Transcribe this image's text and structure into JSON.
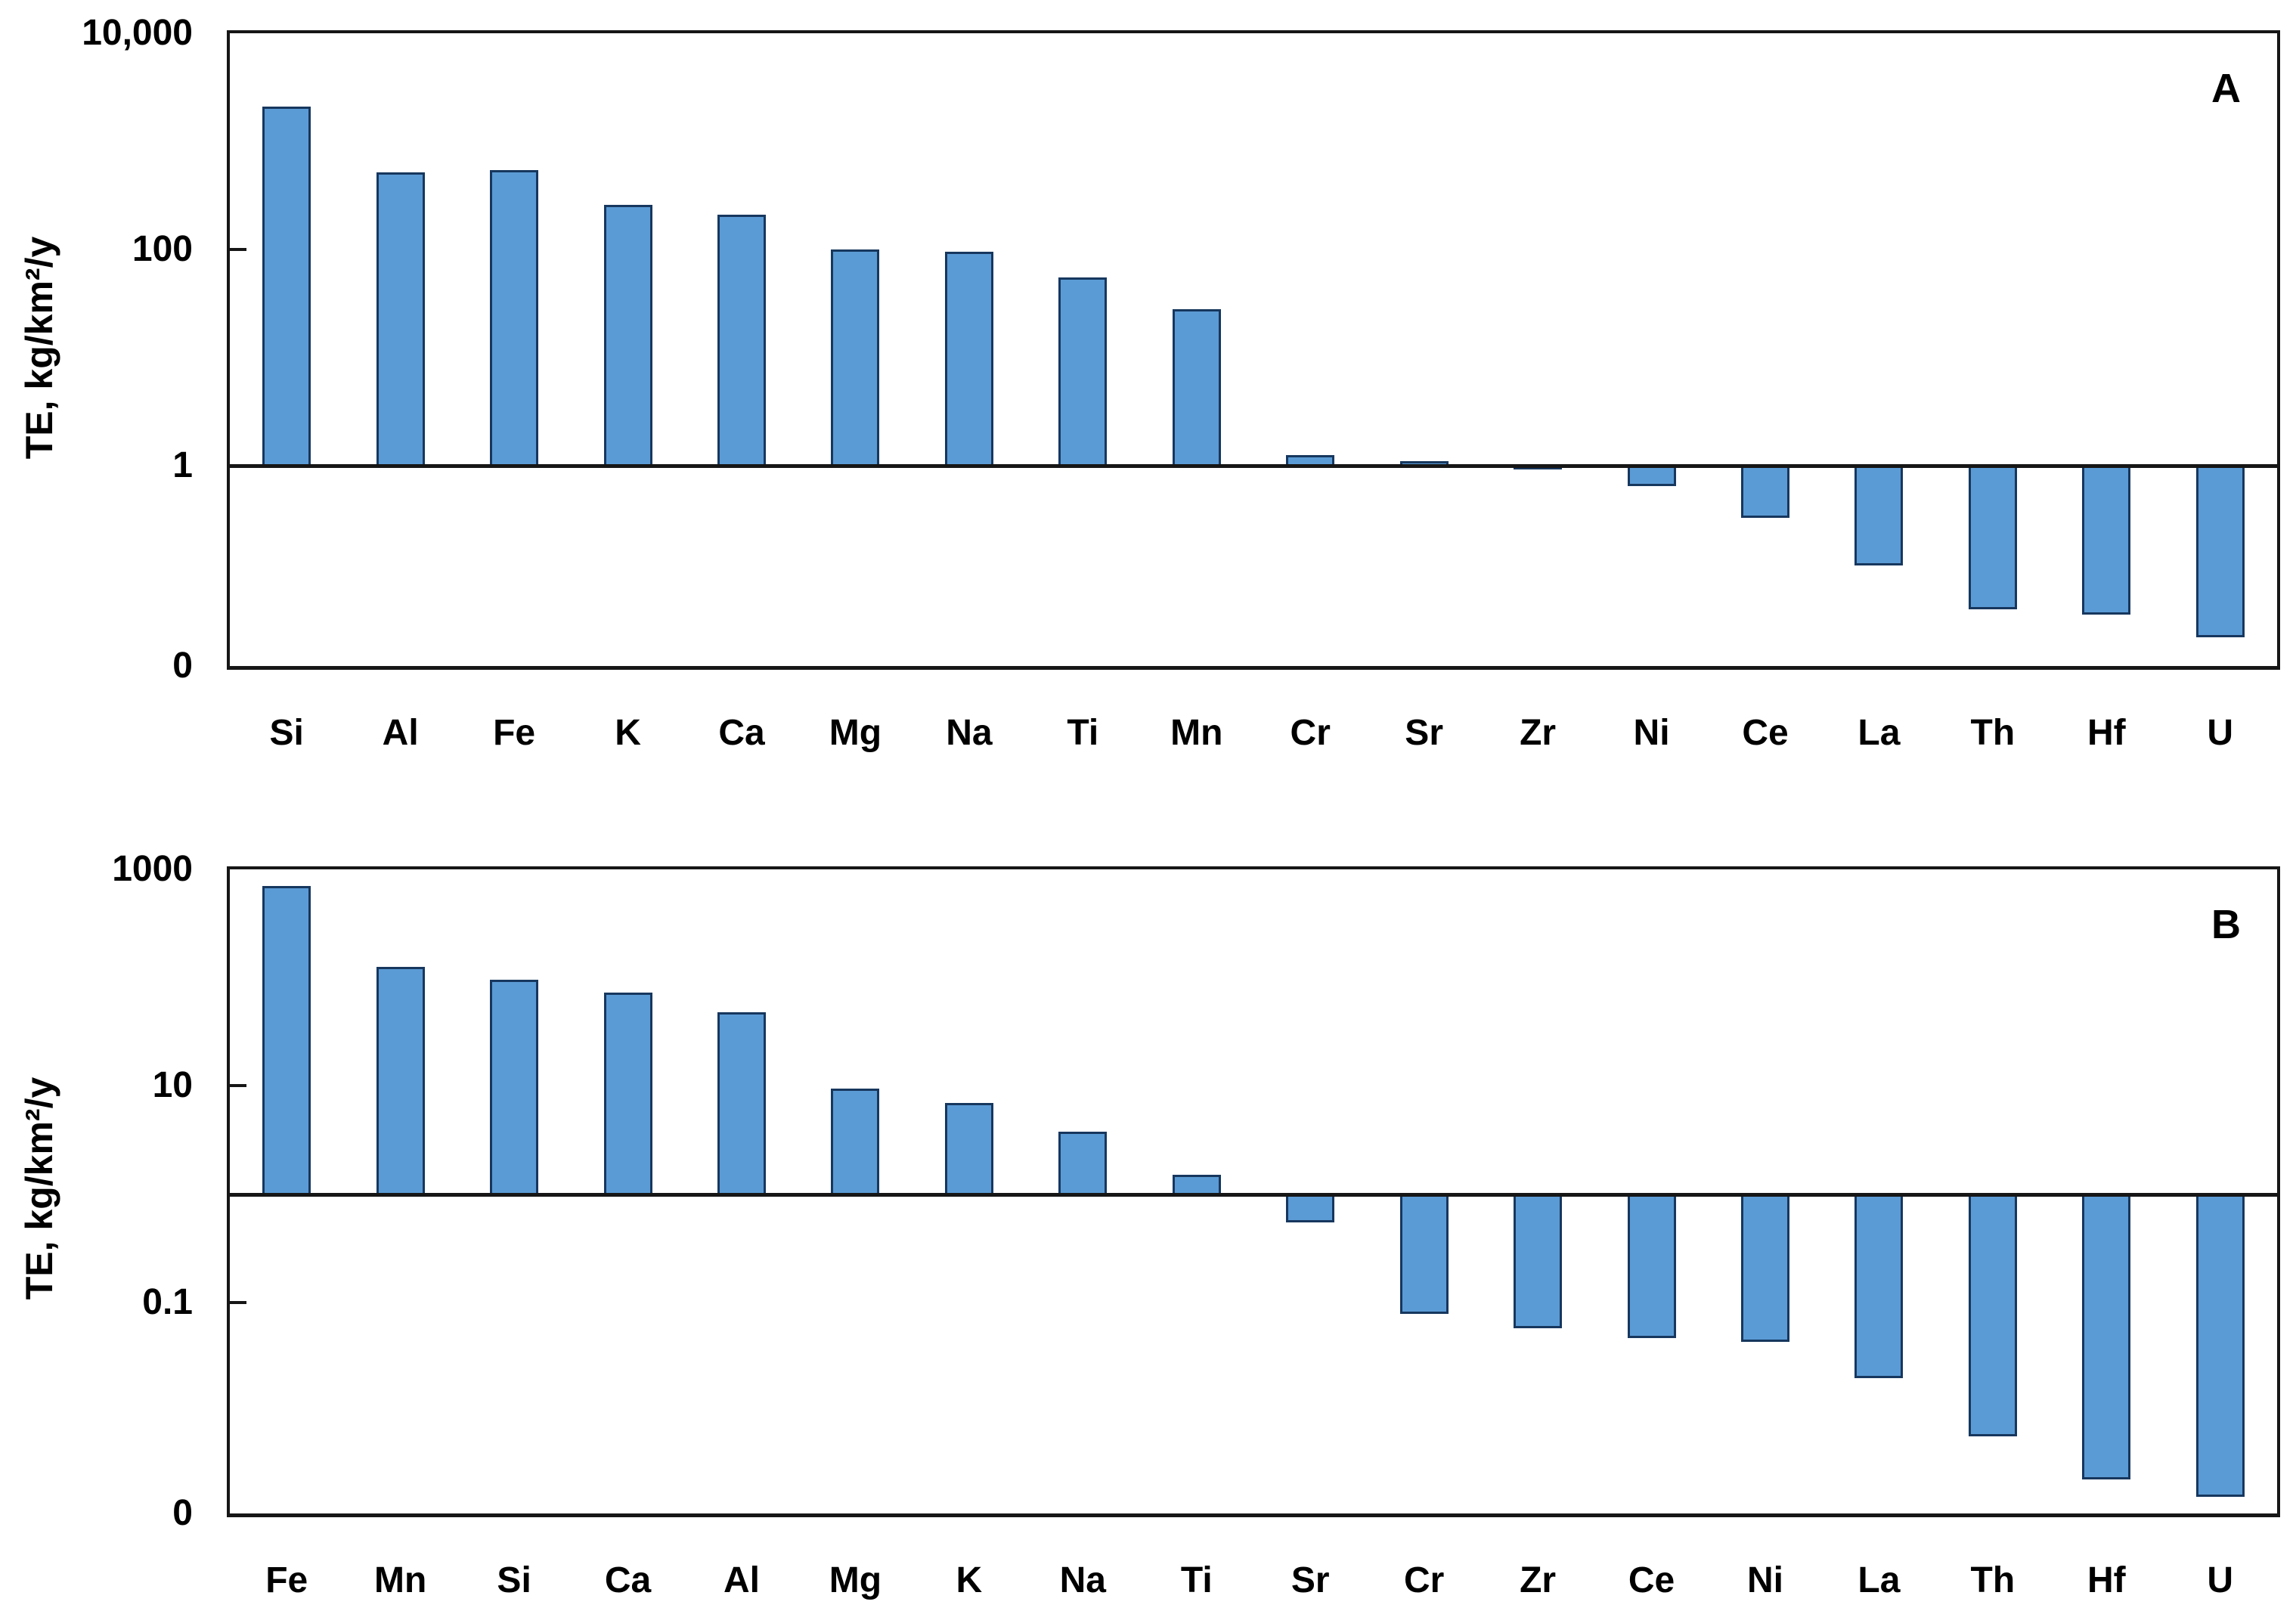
{
  "colors": {
    "bar_fill": "#5b9bd5",
    "bar_border": "#17375e",
    "axis": "#161616",
    "text": "#000000"
  },
  "chart_data": [
    {
      "type": "bar",
      "panel_label": "A",
      "ylabel": "TE, kg/km²/y",
      "xlabel": "",
      "scale": "log",
      "grid": false,
      "legend": "none",
      "baseline": 1,
      "log_top": 4,
      "log_bottom": -1.85,
      "yticks": [
        {
          "label": "10,000",
          "value": 10000
        },
        {
          "label": "100",
          "value": 100
        },
        {
          "label": "1",
          "value": 1
        },
        {
          "label": "0",
          "value": null
        }
      ],
      "categories": [
        "Si",
        "Al",
        "Fe",
        "K",
        "Ca",
        "Mg",
        "Na",
        "Ti",
        "Mn",
        "Cr",
        "Sr",
        "Zr",
        "Ni",
        "Ce",
        "La",
        "Th",
        "Hf",
        "U"
      ],
      "values": [
        2100,
        520,
        540,
        260,
        210,
        100,
        95,
        55,
        28,
        1.25,
        1.1,
        1.02,
        0.65,
        0.33,
        0.12,
        0.047,
        0.042,
        0.026
      ]
    },
    {
      "type": "bar",
      "panel_label": "B",
      "ylabel": "TE, kg/km²/y",
      "xlabel": "",
      "scale": "log",
      "grid": false,
      "legend": "none",
      "baseline": 1,
      "log_top": 3,
      "log_bottom": -2.95,
      "yticks": [
        {
          "label": "1000",
          "value": 1000
        },
        {
          "label": "10",
          "value": 10
        },
        {
          "label": "0.1",
          "value": 0.1
        },
        {
          "label": "0",
          "value": null
        }
      ],
      "categories": [
        "Fe",
        "Mn",
        "Si",
        "Ca",
        "Al",
        "Mg",
        "K",
        "Na",
        "Ti",
        "Sr",
        "Cr",
        "Zr",
        "Ce",
        "Ni",
        "La",
        "Th",
        "Hf",
        "U"
      ],
      "values": [
        700,
        125,
        95,
        73,
        48,
        9.5,
        7,
        3.8,
        1.5,
        0.55,
        0.078,
        0.058,
        0.047,
        0.043,
        0.02,
        0.0058,
        0.0023,
        0.0016
      ]
    }
  ]
}
